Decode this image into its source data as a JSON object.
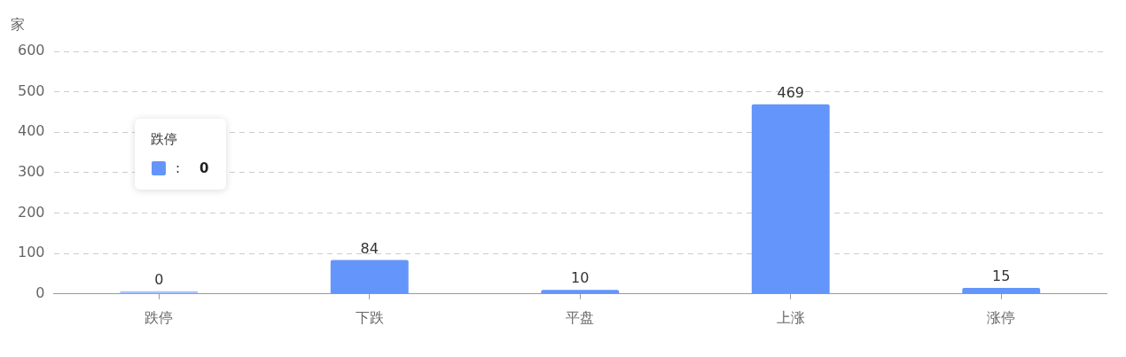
{
  "chart_data": {
    "type": "bar",
    "ylabel": "家",
    "categories": [
      "跌停",
      "下跌",
      "平盘",
      "上涨",
      "涨停"
    ],
    "values": [
      0,
      84,
      10,
      469,
      15
    ],
    "colors": [
      "#a9c4fc",
      "#6495fa",
      "#6495fa",
      "#6495fa",
      "#6495fa"
    ],
    "ylim": [
      0,
      600
    ],
    "yticks": [
      0,
      100,
      200,
      300,
      400,
      500,
      600
    ],
    "grid": "y",
    "data_labels": true,
    "annotations": [
      "跌停",
      ":",
      "0"
    ]
  }
}
